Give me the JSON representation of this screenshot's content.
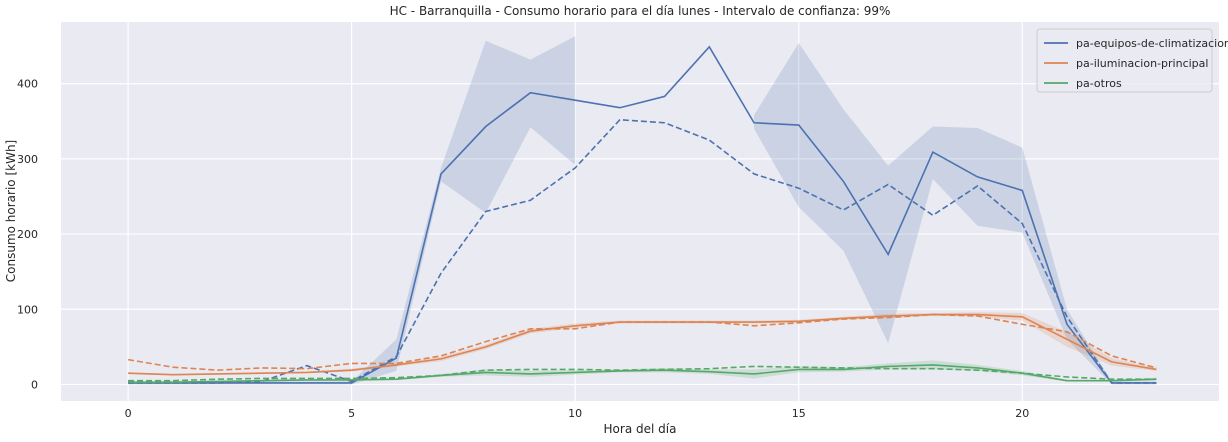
{
  "chart_data": {
    "type": "line",
    "title": "HC - Barranquilla - Consumo horario para el día lunes - Intervalo de confianza: 99%",
    "xlabel": "Hora del día",
    "ylabel": "Consumo horario [kWh]",
    "xlim": [
      -1.5,
      24.4
    ],
    "ylim": [
      -22,
      482
    ],
    "xticks": [
      0,
      5,
      10,
      15,
      20
    ],
    "yticks": [
      0,
      100,
      200,
      300,
      400
    ],
    "grid": true,
    "legend_position": "top-right",
    "x": [
      0,
      1,
      2,
      3,
      4,
      5,
      6,
      7,
      8,
      9,
      10,
      11,
      12,
      13,
      14,
      15,
      16,
      17,
      18,
      19,
      20,
      21,
      22,
      23
    ],
    "series": [
      {
        "name": "pa-equipos-de-climatizacion",
        "color": "#4c72b0",
        "values": [
          2,
          2,
          2,
          2,
          2,
          2,
          35,
          280,
          343,
          388,
          378,
          368,
          383,
          449,
          348,
          345,
          270,
          173,
          309,
          276,
          258,
          80,
          2,
          2
        ],
        "ci_lower": [
          0,
          0,
          0,
          0,
          0,
          0,
          18,
          270,
          228,
          342,
          292,
          null,
          null,
          null,
          340,
          236,
          178,
          55,
          273,
          211,
          202,
          60,
          0,
          0
        ],
        "ci_upper": [
          4,
          4,
          4,
          4,
          4,
          4,
          60,
          288,
          457,
          432,
          463,
          null,
          null,
          null,
          358,
          454,
          366,
          291,
          343,
          341,
          315,
          100,
          4,
          4
        ],
        "dashed_values": [
          2,
          2,
          2,
          4,
          25,
          4,
          37,
          148,
          230,
          245,
          288,
          352,
          348,
          325,
          280,
          261,
          232,
          266,
          225,
          264,
          214,
          90,
          2,
          2
        ]
      },
      {
        "name": "pa-iluminacion-principal",
        "color": "#dd8452",
        "values": [
          15,
          13,
          14,
          15,
          16,
          19,
          26,
          34,
          50,
          71,
          78,
          83,
          83,
          83,
          83,
          84,
          88,
          91,
          93,
          93,
          90,
          60,
          30,
          20
        ],
        "ci_lower": [
          14,
          12,
          13,
          14,
          15,
          17,
          24,
          31,
          47,
          68,
          75,
          81,
          81,
          81,
          81,
          82,
          86,
          88,
          91,
          90,
          85,
          50,
          25,
          18
        ],
        "ci_upper": [
          16,
          14,
          15,
          16,
          17,
          21,
          28,
          37,
          53,
          74,
          81,
          85,
          85,
          85,
          85,
          86,
          90,
          94,
          95,
          96,
          95,
          70,
          35,
          22
        ],
        "dashed_values": [
          33,
          23,
          19,
          22,
          21,
          28,
          28,
          38,
          57,
          74,
          74,
          83,
          83,
          83,
          78,
          82,
          87,
          89,
          93,
          91,
          80,
          70,
          38,
          22
        ]
      },
      {
        "name": "pa-otros",
        "color": "#55a868",
        "values": [
          3,
          3,
          4,
          5,
          6,
          6,
          7,
          12,
          16,
          14,
          16,
          18,
          19,
          17,
          14,
          20,
          20,
          24,
          26,
          22,
          15,
          5,
          5,
          7
        ],
        "ci_lower": [
          2,
          2,
          3,
          4,
          5,
          5,
          6,
          10,
          12,
          10,
          13,
          16,
          16,
          14,
          8,
          16,
          17,
          20,
          20,
          18,
          12,
          4,
          4,
          5
        ],
        "ci_upper": [
          4,
          4,
          5,
          6,
          7,
          7,
          8,
          14,
          20,
          18,
          19,
          20,
          22,
          20,
          20,
          24,
          23,
          28,
          32,
          26,
          18,
          6,
          6,
          9
        ],
        "dashed_values": [
          5,
          5,
          7,
          8,
          8,
          8,
          9,
          12,
          19,
          20,
          20,
          19,
          20,
          21,
          24,
          23,
          22,
          21,
          21,
          19,
          15,
          10,
          7,
          7
        ]
      }
    ]
  }
}
